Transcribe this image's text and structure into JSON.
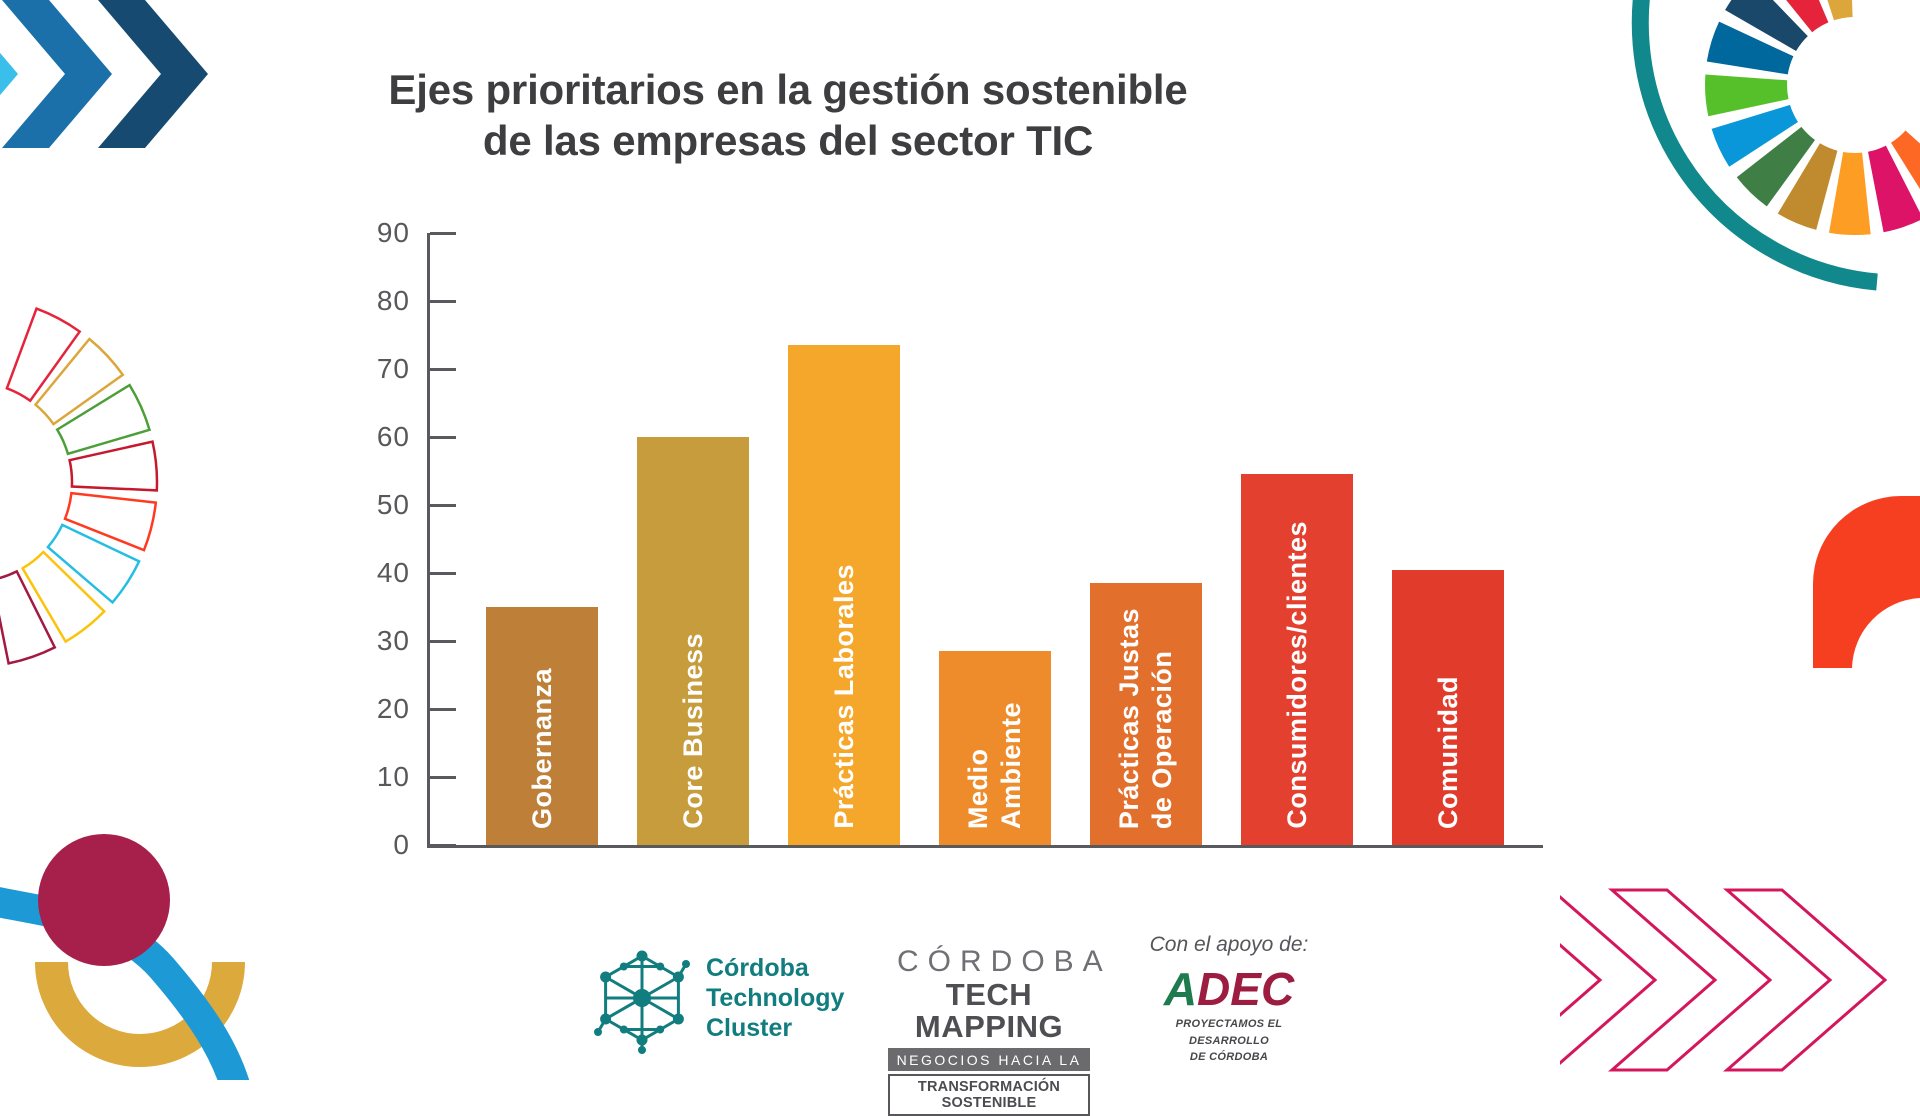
{
  "title": {
    "line1": "Ejes prioritarios en la gestión sostenible",
    "line2": "de las empresas del sector TIC"
  },
  "chart_data": {
    "type": "bar",
    "title": "Ejes prioritarios en la gestión sostenible de las empresas del sector TIC",
    "categories": [
      "Gobernanza",
      "Core Business",
      "Prácticas Laborales",
      "Medio\nAmbiente",
      "Prácticas Justas\nde Operación",
      "Consumidores/clientes",
      "Comunidad"
    ],
    "values": [
      35,
      60,
      73.5,
      28.5,
      38.5,
      54.5,
      40.5
    ],
    "bar_colors": [
      "#BE8038",
      "#C69C3D",
      "#F4A72A",
      "#EE8C2B",
      "#E2702C",
      "#E4402F",
      "#E13B2B"
    ],
    "label_color": "#FFFFFF",
    "xlabel": "",
    "ylabel": "",
    "ylim": [
      0,
      90
    ],
    "yticks": [
      0,
      10,
      20,
      30,
      40,
      50,
      60,
      70,
      80,
      90
    ],
    "grid": false,
    "legend": null,
    "axis_color": "#595A5D",
    "title_color": "#3E3E41"
  },
  "footer": {
    "ctc": {
      "name": "Córdoba\nTechnology\nCluster",
      "color": "#117D7F"
    },
    "tech_mapping": {
      "line1": "CÓRDOBA",
      "line2": "TECH MAPPING",
      "line3": "NEGOCIOS HACIA LA",
      "line4": "TRANSFORMACIÓN SOSTENIBLE"
    },
    "support": {
      "label": "Con el apoyo de:",
      "brand_a": "A",
      "brand_rest": "DEC",
      "brand_a_color": "#1E7B4E",
      "brand_rest_color": "#9C1D3F",
      "tagline": "PROYECTAMOS EL DESARROLLO\nDE CÓRDOBA"
    }
  },
  "decor": {
    "top_left_chevrons": [
      "#39BFE9",
      "#1C70A9",
      "#174A70"
    ],
    "sdg_wheel": {
      "colors": [
        "#DDA63A",
        "#E5243B",
        "#19486A",
        "#00689D",
        "#56C02B",
        "#0A97D9",
        "#3F7E44",
        "#BF8B2E",
        "#FD9D24",
        "#DD1367",
        "#FD6925"
      ],
      "arc_color": "#11898C"
    },
    "outline_wheel": {
      "colors": [
        "#E5243B",
        "#DDA63A",
        "#4C9F38",
        "#C5192D",
        "#FF3A21",
        "#26BDE2",
        "#FCC30B",
        "#A21942"
      ]
    },
    "corner_shape_color": "#F63E20",
    "bottom_right_chevron_color": "#D4175C",
    "bottom_left": {
      "gold": "#DCA93C",
      "blue": "#1D99D6",
      "circle": "#A7204B"
    }
  }
}
